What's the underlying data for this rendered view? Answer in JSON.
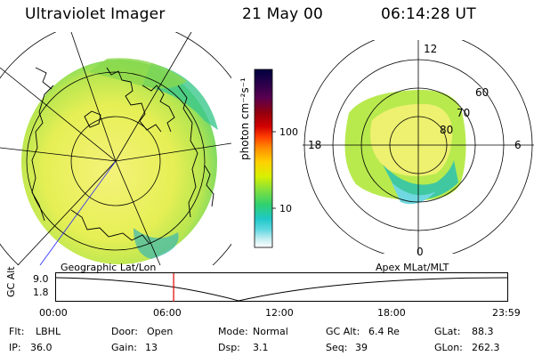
{
  "header": {
    "instrument": "Ultraviolet Imager",
    "date": "21 May 00",
    "time": "06:14:28 UT"
  },
  "colorbar": {
    "unit_label": "photon cm⁻²s⁻¹",
    "ticks": [
      "100",
      "10"
    ],
    "colors": [
      "#000040",
      "#2a004a",
      "#5a0050",
      "#900010",
      "#d00000",
      "#ff4000",
      "#ff8c00",
      "#ffd000",
      "#d8f000",
      "#80e040",
      "#30d070",
      "#20c8c8",
      "#60d8e0",
      "#c0ecf0",
      "#ffffff"
    ]
  },
  "geo_panel": {
    "label": "Geographic Lat/Lon"
  },
  "apex_panel": {
    "label": "Apex MLat/MLT",
    "mlt_labels": {
      "top": "12",
      "left": "18",
      "right": "6",
      "bottom": "0"
    },
    "mlat_labels": [
      "80",
      "70",
      "60"
    ]
  },
  "altitude_strip": {
    "axis_label": "GC Alt",
    "y_ticks": [
      "9.0",
      "1.8"
    ],
    "x_ticks": [
      "00:00",
      "06:00",
      "12:00",
      "18:00",
      "23:59"
    ],
    "current_time_fraction": 0.26
  },
  "status": {
    "row1": [
      {
        "key": "Flt:",
        "value": "LBHL"
      },
      {
        "key": "Door:",
        "value": "Open"
      },
      {
        "key": "Mode:",
        "value": "Normal"
      },
      {
        "key": "GC Alt:",
        "value": "6.4 Re"
      },
      {
        "key": "GLat:",
        "value": "88.3"
      }
    ],
    "row2": [
      {
        "key": "IP:",
        "value": "36.0"
      },
      {
        "key": "Gain:",
        "value": "13"
      },
      {
        "key": "Dsp:",
        "value": "3.1"
      },
      {
        "key": "Seq:",
        "value": "39"
      },
      {
        "key": "GLon:",
        "value": "262.3"
      }
    ]
  }
}
